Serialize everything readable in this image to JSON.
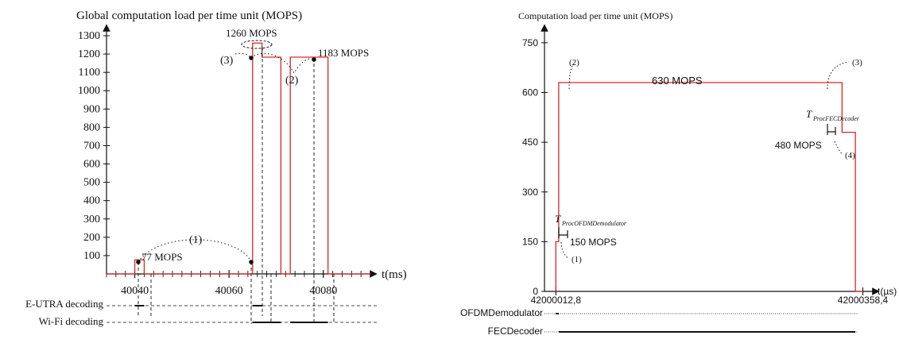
{
  "chart_data": [
    {
      "type": "line",
      "title": "Global computation load per time unit (MOPS)",
      "xlabel": "t(ms)",
      "ylabel": "",
      "xlim": [
        40034,
        40090
      ],
      "ylim": [
        0,
        1300
      ],
      "y_ticks": [
        100,
        200,
        300,
        400,
        500,
        600,
        700,
        800,
        900,
        1000,
        1100,
        1200,
        1300
      ],
      "y_tick_labels": [
        "100",
        "200",
        "300",
        "400",
        "500",
        "600",
        "700",
        "800",
        "900",
        "1000",
        "1100",
        "1200",
        "1300"
      ],
      "x_ticks": [
        40040,
        40060,
        40080
      ],
      "x_tick_labels": [
        "40040",
        "40060",
        "40080"
      ],
      "color": "#d62728",
      "series": [
        {
          "x": [
            40034,
            40040,
            40040,
            40042,
            40042,
            40065,
            40065,
            40067,
            40067,
            40071,
            40071,
            40073,
            40073,
            40081,
            40081,
            40090
          ],
          "y": [
            0,
            0,
            77,
            77,
            0,
            0,
            1260,
            1260,
            1183,
            1183,
            0,
            0,
            1183,
            1183,
            0,
            0
          ]
        }
      ],
      "annotations": [
        {
          "text": "77 MOPS",
          "x": 40040,
          "y": 77
        },
        {
          "text": "1260 MOPS",
          "x": 40066,
          "y": 1260
        },
        {
          "text": "1183 MOPS",
          "x": 40077,
          "y": 1183
        },
        {
          "text": "(1)",
          "x": 40052,
          "y": 77
        },
        {
          "text": "(2)",
          "x": 40070,
          "y": 1183
        },
        {
          "text": "(3)",
          "x": 40064,
          "y": 1260
        }
      ],
      "timeline": [
        {
          "label": "E-UTRA decoding",
          "spans": [
            [
              40040,
              40042
            ],
            [
              40065,
              40067
            ]
          ]
        },
        {
          "label": "Wi-Fi decoding",
          "spans": [
            [
              40065,
              40071
            ],
            [
              40073,
              40081
            ]
          ]
        }
      ]
    },
    {
      "type": "line",
      "title": "Computation load per time unit (MOPS)",
      "xlabel": "t(µs)",
      "ylabel": "",
      "ylim": [
        0,
        800
      ],
      "y_ticks": [
        0,
        150,
        300,
        450,
        600,
        750
      ],
      "y_tick_labels": [
        "0",
        "150",
        "300",
        "450",
        "600",
        "750"
      ],
      "x_ticks": [
        42000012.8,
        42000358.4
      ],
      "x_tick_labels": [
        "42000012,8",
        "42000358,4"
      ],
      "xlim": [
        42000000,
        42000400
      ],
      "color": "#d62728",
      "series": [
        {
          "x": [
            42000012.8,
            42000012.8,
            42000016,
            42000016,
            42000335,
            42000335,
            42000350,
            42000350,
            42000358.4
          ],
          "y": [
            0,
            150,
            150,
            630,
            630,
            480,
            480,
            0,
            0
          ]
        }
      ],
      "annotations": [
        {
          "text": "630 MOPS",
          "x": 42000180,
          "y": 630
        },
        {
          "text": "480 MOPS",
          "x": 42000335,
          "y": 480
        },
        {
          "text": "150 MOPS",
          "x": 42000016,
          "y": 150
        },
        {
          "text": "(1)",
          "x": 42000014,
          "y": 150
        },
        {
          "text": "(2)",
          "x": 42000016,
          "y": 630
        },
        {
          "text": "(3)",
          "x": 42000335,
          "y": 630
        },
        {
          "text": "(4)",
          "x": 42000345,
          "y": 480
        }
      ],
      "duration_markers": [
        {
          "main": "T",
          "sub": "ProcOFDMDemodulator"
        },
        {
          "main": "T",
          "sub": "ProcFECDecoder"
        }
      ],
      "timeline": [
        {
          "label": "OFDMDemodulator",
          "spans": [
            [
              42000012.8,
              42000016
            ]
          ]
        },
        {
          "label": "FECDecoder",
          "spans": [
            [
              42000016,
              42000350
            ]
          ]
        }
      ]
    }
  ]
}
